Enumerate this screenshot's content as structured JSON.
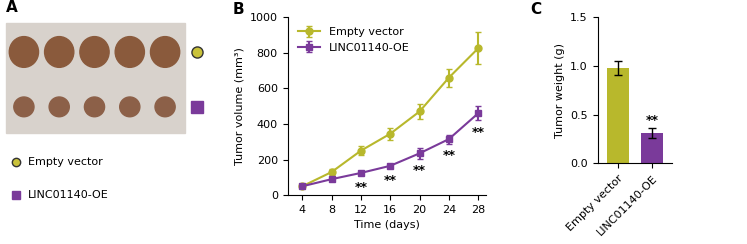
{
  "chart_data": [
    {
      "type": "photo",
      "title": "A",
      "series": [
        {
          "name": "Empty vector",
          "color": "#c9c23a",
          "marker": "circle"
        },
        {
          "name": "LINC01140-OE",
          "color": "#7a3a9a",
          "marker": "square"
        }
      ]
    },
    {
      "type": "line",
      "title": "B",
      "x_label": "Time (days)",
      "y_label": "Tumor volume (mm³)",
      "x": [
        4,
        8,
        12,
        16,
        20,
        24,
        28
      ],
      "series": [
        {
          "name": "Empty vector",
          "color": "#b8b82c",
          "marker": "circle",
          "values": [
            50,
            130,
            250,
            345,
            470,
            660,
            825
          ],
          "errors": [
            8,
            15,
            25,
            35,
            40,
            50,
            90
          ]
        },
        {
          "name": "LINC01140-OE",
          "color": "#7a3a9a",
          "marker": "square",
          "values": [
            50,
            90,
            125,
            165,
            235,
            315,
            460
          ],
          "errors": [
            5,
            10,
            12,
            12,
            30,
            25,
            40
          ]
        }
      ],
      "annotations": [
        {
          "x": 12,
          "text": "**"
        },
        {
          "x": 16,
          "text": "**"
        },
        {
          "x": 20,
          "text": "**"
        },
        {
          "x": 24,
          "text": "**"
        },
        {
          "x": 28,
          "text": "**"
        }
      ],
      "xlim": [
        2,
        29
      ],
      "xticks": [
        4,
        8,
        12,
        16,
        20,
        24,
        28
      ],
      "ylim": [
        0,
        1000
      ],
      "yticks": [
        0,
        200,
        400,
        600,
        800,
        1000
      ],
      "legend": "upper left"
    },
    {
      "type": "bar",
      "title": "C",
      "y_label": "Tumor weight (g)",
      "categories": [
        "Empty vector",
        "LINC01140-OE"
      ],
      "values": [
        0.98,
        0.31
      ],
      "errors": [
        0.07,
        0.05
      ],
      "colors": [
        "#b8b82c",
        "#7a3a9a"
      ],
      "annotations": [
        {
          "category": "LINC01140-OE",
          "text": "**"
        }
      ],
      "ylim": [
        0,
        1.5
      ],
      "yticks": [
        {
          "value": 0,
          "label": "0.0"
        },
        0.5,
        {
          "value": 1,
          "label": "1.0"
        },
        1.5
      ]
    }
  ]
}
